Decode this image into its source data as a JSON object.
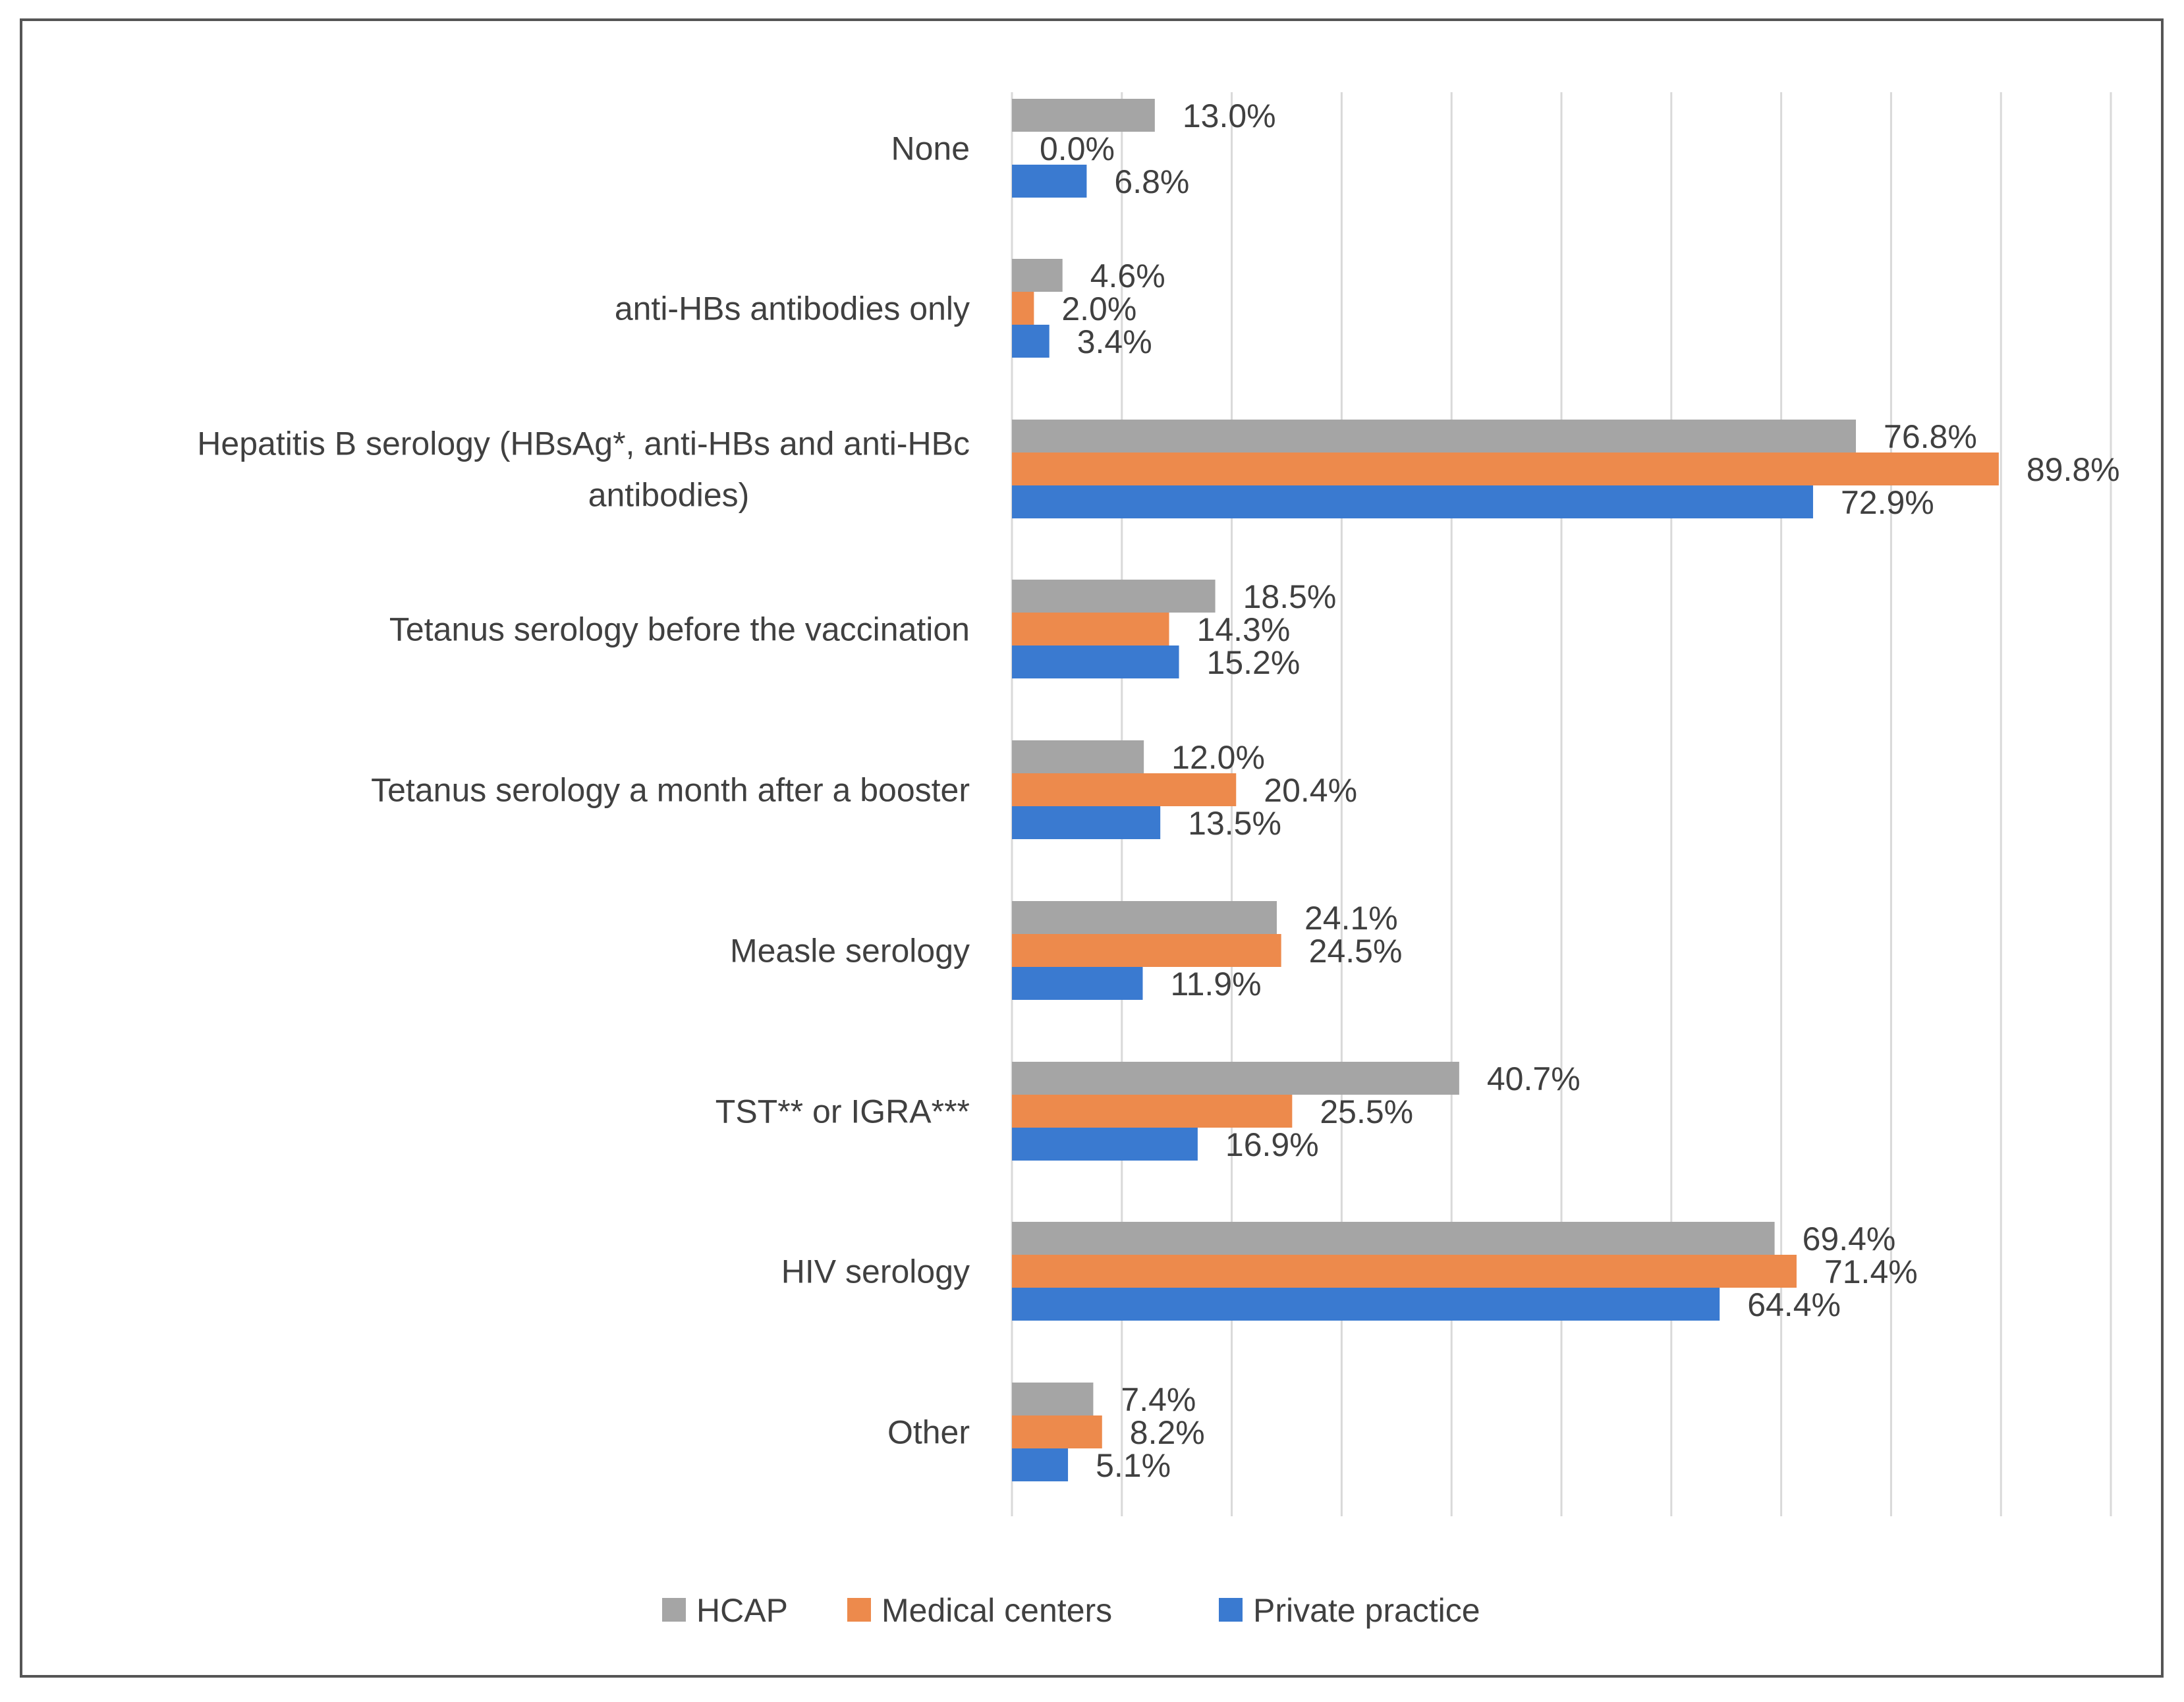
{
  "chart_data": {
    "type": "bar",
    "orientation": "horizontal",
    "title": "",
    "xlabel": "",
    "ylabel": "",
    "xlim": [
      0,
      100
    ],
    "grid": true,
    "legend_position": "bottom-center",
    "categories": [
      "None",
      "anti-HBs antibodies only",
      "Hepatitis B serology (HBsAg*, anti-HBs and  anti-HBc antibodies)",
      "Tetanus serology before the vaccination",
      "Tetanus serology a month after a booster",
      "Measle serology",
      "TST** or IGRA***",
      "HIV serology",
      "Other"
    ],
    "category_lines": [
      [
        "None"
      ],
      [
        "anti-HBs antibodies only"
      ],
      [
        "Hepatitis B serology (HBsAg*, anti-HBs and  anti-HBc",
        "antibodies)"
      ],
      [
        "Tetanus serology before the vaccination"
      ],
      [
        "Tetanus serology a month after a booster"
      ],
      [
        "Measle serology"
      ],
      [
        "TST** or IGRA***"
      ],
      [
        "HIV serology"
      ],
      [
        "Other"
      ]
    ],
    "series": [
      {
        "name": "HCAP",
        "color": "#a5a5a5",
        "values": [
          13.0,
          4.6,
          76.8,
          18.5,
          12.0,
          24.1,
          40.7,
          69.4,
          7.4
        ],
        "labels": [
          "13.0%",
          "4.6%",
          "76.8%",
          "18.5%",
          "12.0%",
          "24.1%",
          "40.7%",
          "69.4%",
          "7.4%"
        ]
      },
      {
        "name": "Medical centers",
        "color": "#ed8a4c",
        "values": [
          0.0,
          2.0,
          89.8,
          14.3,
          20.4,
          24.5,
          25.5,
          71.4,
          8.2
        ],
        "labels": [
          "0.0%",
          "2.0%",
          "89.8%",
          "14.3%",
          "20.4%",
          "24.5%",
          "25.5%",
          "71.4%",
          "8.2%"
        ]
      },
      {
        "name": "Private practice",
        "color": "#3a7ad0",
        "values": [
          6.8,
          3.4,
          72.9,
          15.2,
          13.5,
          11.9,
          16.9,
          64.4,
          5.1
        ],
        "labels": [
          "6.8%",
          "3.4%",
          "72.9%",
          "15.2%",
          "13.5%",
          "11.9%",
          "16.9%",
          "64.4%",
          "5.1%"
        ]
      }
    ]
  }
}
